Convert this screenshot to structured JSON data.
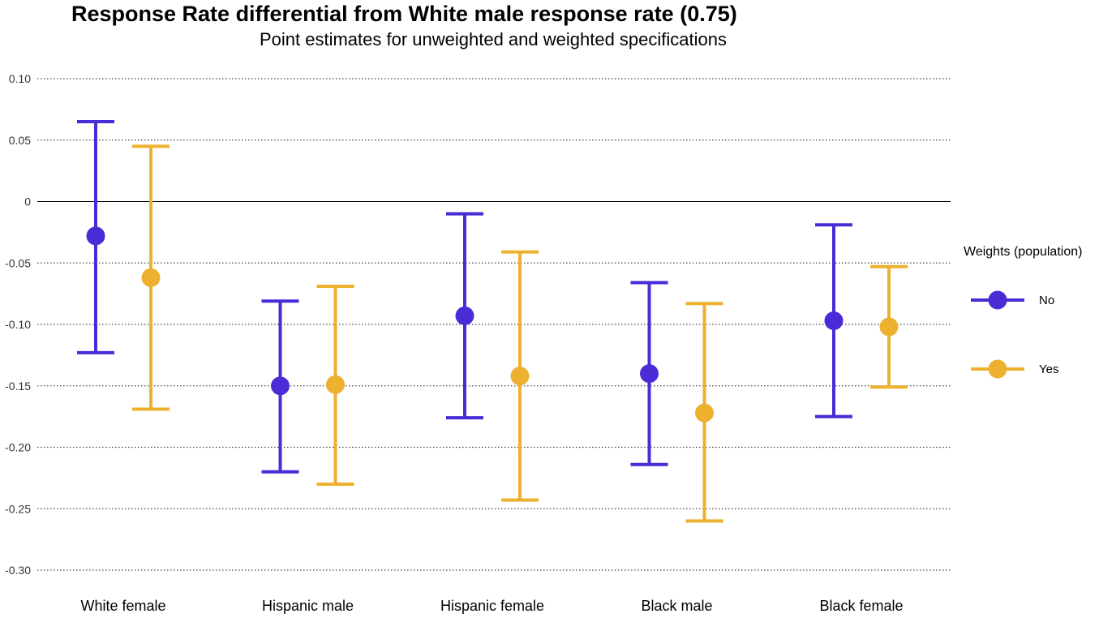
{
  "header": {
    "title": "Response Rate differential from White male response rate (0.75)",
    "subtitle": "Point estimates for unweighted and weighted specifications"
  },
  "legend": {
    "title": "Weights (population)",
    "items": [
      {
        "label": "No",
        "color": "#4b2bd6"
      },
      {
        "label": "Yes",
        "color": "#eeb12f"
      }
    ]
  },
  "chart_data": {
    "type": "scatter",
    "subtype": "point-with-error-bars",
    "title": "Response Rate differential from White male response rate (0.75)",
    "subtitle": "Point estimates for unweighted and weighted specifications",
    "xlabel": "",
    "ylabel": "",
    "categories": [
      "White female",
      "Hispanic male",
      "Hispanic female",
      "Black male",
      "Black female"
    ],
    "ylim": [
      -0.3,
      0.1
    ],
    "yticks": [
      0.1,
      0.05,
      0,
      -0.05,
      -0.1,
      -0.15,
      -0.2,
      -0.25,
      -0.3
    ],
    "ytick_labels": [
      "0.10",
      "0.05",
      "0",
      "-0.05",
      "-0.10",
      "-0.15",
      "-0.20",
      "-0.25",
      "-0.30"
    ],
    "grid": "horizontal dotted",
    "zero_line": true,
    "legend_position": "right",
    "series": [
      {
        "name": "No",
        "color": "#4b2bd6",
        "values": [
          -0.028,
          -0.15,
          -0.093,
          -0.14,
          -0.097
        ],
        "lower": [
          -0.123,
          -0.22,
          -0.176,
          -0.214,
          -0.175
        ],
        "upper": [
          0.065,
          -0.081,
          -0.01,
          -0.066,
          -0.019
        ]
      },
      {
        "name": "Yes",
        "color": "#eeb12f",
        "values": [
          -0.062,
          -0.149,
          -0.142,
          -0.172,
          -0.102
        ],
        "lower": [
          -0.169,
          -0.23,
          -0.243,
          -0.26,
          -0.151
        ],
        "upper": [
          0.045,
          -0.069,
          -0.041,
          -0.083,
          -0.053
        ]
      }
    ]
  }
}
